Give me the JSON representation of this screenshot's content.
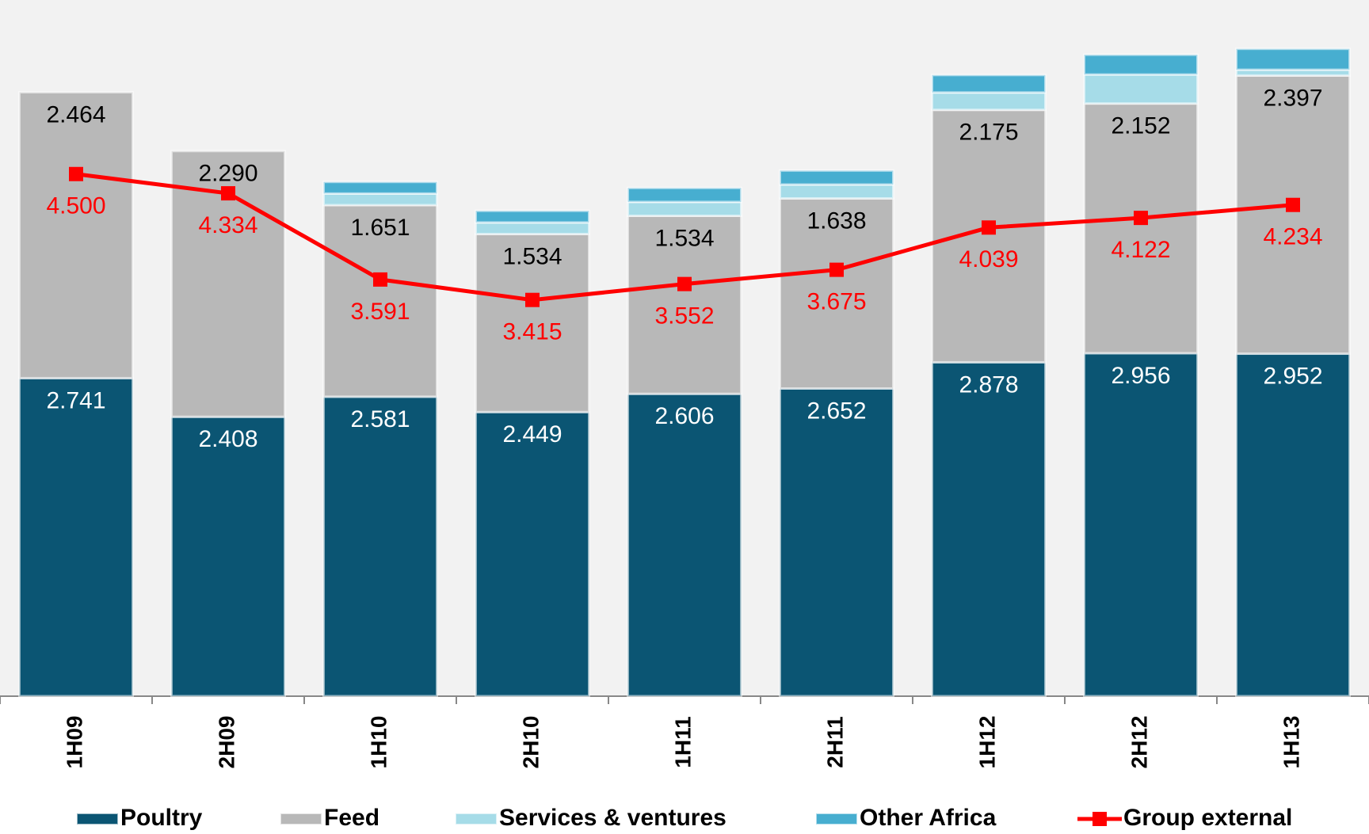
{
  "chart_data": {
    "type": "bar",
    "stacked": true,
    "categories": [
      "1H09",
      "2H09",
      "1H10",
      "2H10",
      "1H11",
      "2H11",
      "1H12",
      "2H12",
      "1H13"
    ],
    "ylim": [
      0,
      6
    ],
    "series": [
      {
        "name": "Poultry",
        "color": "#0b5573",
        "values": [
          2.741,
          2.408,
          2.581,
          2.449,
          2.606,
          2.652,
          2.878,
          2.956,
          2.952
        ],
        "value_labels": [
          "2.741",
          "2.408",
          "2.581",
          "2.449",
          "2.606",
          "2.652",
          "2.878",
          "2.956",
          "2.952"
        ]
      },
      {
        "name": "Feed",
        "color": "#b8b8b8",
        "values": [
          2.464,
          2.29,
          1.651,
          1.534,
          1.534,
          1.638,
          2.175,
          2.152,
          2.397
        ],
        "value_labels": [
          "2.464",
          "2.290",
          "1.651",
          "1.534",
          "1.534",
          "1.638",
          "2.175",
          "2.152",
          "2.397"
        ]
      },
      {
        "name": "Services & ventures",
        "color": "#a6dce8",
        "values": [
          0,
          0,
          0.1,
          0.1,
          0.12,
          0.12,
          0.15,
          0.25,
          0.05
        ]
      },
      {
        "name": "Other Africa",
        "color": "#47aed0",
        "values": [
          0,
          0,
          0.1,
          0.1,
          0.12,
          0.12,
          0.15,
          0.17,
          0.18
        ]
      },
      {
        "name": "Group external",
        "type": "line",
        "color": "#ff0000",
        "values": [
          4.5,
          4.334,
          3.591,
          3.415,
          3.552,
          3.675,
          4.039,
          4.122,
          4.234
        ],
        "value_labels": [
          "4.500",
          "4.334",
          "3.591",
          "3.415",
          "3.552",
          "3.675",
          "4.039",
          "4.122",
          "4.234"
        ]
      }
    ]
  }
}
